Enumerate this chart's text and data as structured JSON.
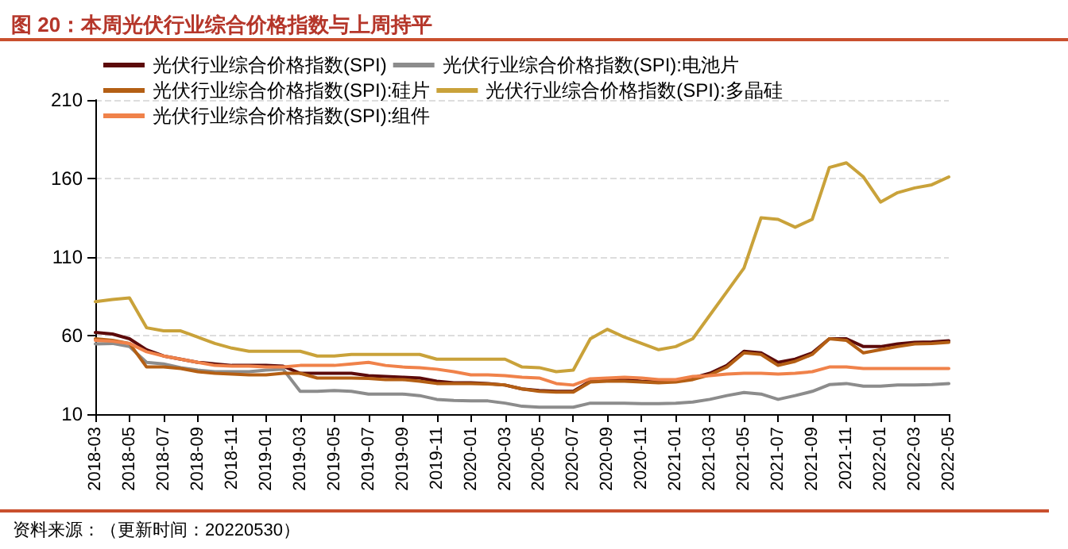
{
  "chart_data": {
    "type": "line",
    "title": "图 20：本周光伏行业综合价格指数与上周持平",
    "annotations": [
      "资料来源：（更新时间：20220530）"
    ],
    "categories": [
      "2018-03",
      null,
      "2018-05",
      null,
      "2018-07",
      null,
      "2018-09",
      null,
      "2018-11",
      null,
      "2019-01",
      null,
      "2019-03",
      null,
      "2019-05",
      null,
      "2019-07",
      null,
      "2019-09",
      null,
      "2019-11",
      null,
      "2020-01",
      null,
      "2020-03",
      null,
      "2020-05",
      null,
      "2020-07",
      null,
      "2020-09",
      null,
      "2020-11",
      null,
      "2021-01",
      null,
      "2021-03",
      null,
      "2021-05",
      null,
      "2021-07",
      null,
      "2021-09",
      null,
      "2021-11",
      null,
      "2022-01",
      null,
      "2022-03",
      null,
      "2022-05"
    ],
    "series": [
      {
        "name": "光伏行业综合价格指数(SPI)",
        "color": "#5c0a0a",
        "values": [
          62,
          61,
          58,
          51,
          47,
          45,
          43,
          42,
          41,
          41,
          41,
          40.5,
          36,
          36,
          36,
          36,
          34.5,
          34,
          33.5,
          33,
          31,
          30,
          30,
          29.5,
          28.5,
          26,
          25,
          24.5,
          24.5,
          31,
          32,
          32,
          31,
          30.5,
          31,
          33,
          36,
          41,
          50,
          49,
          43,
          45,
          49,
          58,
          58,
          53,
          53,
          54.7,
          55.7,
          56,
          56.7
        ]
      },
      {
        "name": "光伏行业综合价格指数(SPI):电池片",
        "color": "#8c8c8c",
        "values": [
          54.7,
          55,
          53,
          43,
          42,
          39.6,
          38,
          37,
          37,
          37,
          38,
          38.6,
          24.5,
          24.5,
          25,
          24.5,
          22.8,
          22.8,
          22.8,
          21.8,
          19.4,
          18.7,
          18.4,
          18.4,
          17,
          15,
          14.4,
          14.4,
          14.4,
          17,
          17,
          17,
          16.7,
          16.7,
          17,
          17.7,
          19.4,
          21.8,
          23.8,
          22.8,
          19.4,
          21.8,
          24.5,
          28.8,
          29.5,
          27.8,
          27.8,
          28.5,
          28.5,
          28.8,
          29.5
        ]
      },
      {
        "name": "光伏行业综合价格指数(SPI):硅片",
        "color": "#b45f14",
        "values": [
          58,
          57,
          55,
          40,
          40,
          39,
          37,
          36,
          35.5,
          35,
          35,
          36,
          36,
          33,
          33,
          33,
          32.7,
          32,
          32,
          31,
          29.5,
          29.5,
          29.5,
          29.2,
          28.5,
          26,
          24.5,
          24,
          24,
          30.5,
          31,
          31,
          30.5,
          30,
          30.5,
          32,
          35,
          40,
          49,
          48,
          41,
          43.6,
          48,
          58,
          57,
          49,
          51,
          53,
          54.7,
          55,
          55.7
        ]
      },
      {
        "name": "光伏行业综合价格指数(SPI):多晶硅",
        "color": "#c9a23a",
        "values": [
          81.6,
          83,
          84,
          65,
          63,
          63,
          59,
          55,
          52,
          50,
          50,
          50,
          50,
          47,
          47,
          48,
          48,
          48,
          48,
          48,
          45,
          45,
          45,
          45,
          45,
          40,
          39.6,
          37,
          38,
          58,
          64,
          59,
          55,
          51,
          53,
          58,
          73,
          88,
          103,
          135,
          134,
          129,
          134,
          167,
          170,
          161,
          145,
          151,
          154,
          156,
          161
        ]
      },
      {
        "name": "光伏行业综合价格指数(SPI):组件",
        "color": "#f0824a",
        "values": [
          57,
          56.4,
          55,
          49.7,
          47,
          45,
          43,
          41,
          40.6,
          40.6,
          40,
          40,
          41,
          41,
          41,
          42,
          43,
          41,
          40,
          39.6,
          38.6,
          37,
          35,
          35,
          34.5,
          33.5,
          33,
          29.5,
          28.5,
          32.5,
          33,
          33.5,
          33,
          32,
          32,
          34,
          34.5,
          35.5,
          36,
          36,
          35.5,
          36,
          37,
          40,
          40,
          39,
          39,
          39,
          39,
          39,
          39
        ]
      }
    ],
    "ylim": [
      10,
      210
    ],
    "yticks": [
      10,
      60,
      110,
      160,
      210
    ],
    "grid": "y",
    "legend": "top",
    "marker": "none",
    "line_style": "solid"
  }
}
